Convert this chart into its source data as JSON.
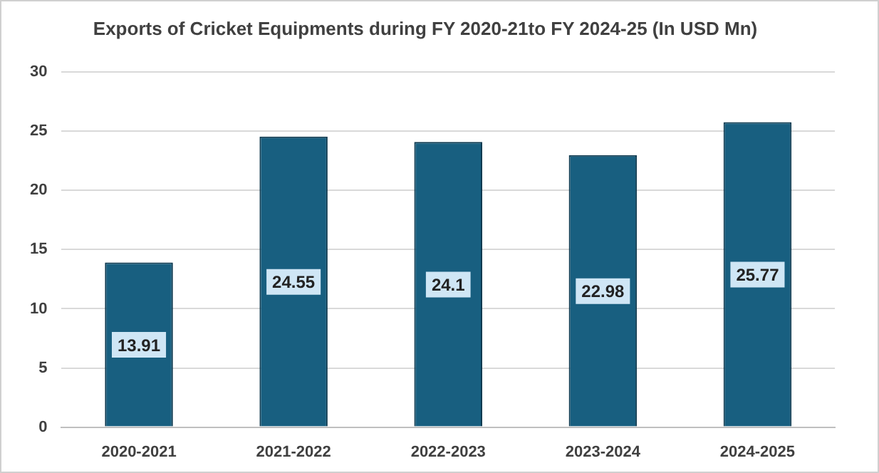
{
  "chart_data": {
    "type": "bar",
    "title": "Exports of Cricket Equipments during FY 2020-21to FY 2024-25 (In USD Mn)",
    "categories": [
      "2020-2021",
      "2021-2022",
      "2022-2023",
      "2023-2024",
      "2024-2025"
    ],
    "values": [
      13.91,
      24.55,
      24.1,
      22.98,
      25.77
    ],
    "color": "#185f80",
    "ylim": [
      0,
      30
    ],
    "yticks": [
      0,
      5,
      10,
      15,
      20,
      25,
      30
    ],
    "grid": "y",
    "data_labels": true
  }
}
